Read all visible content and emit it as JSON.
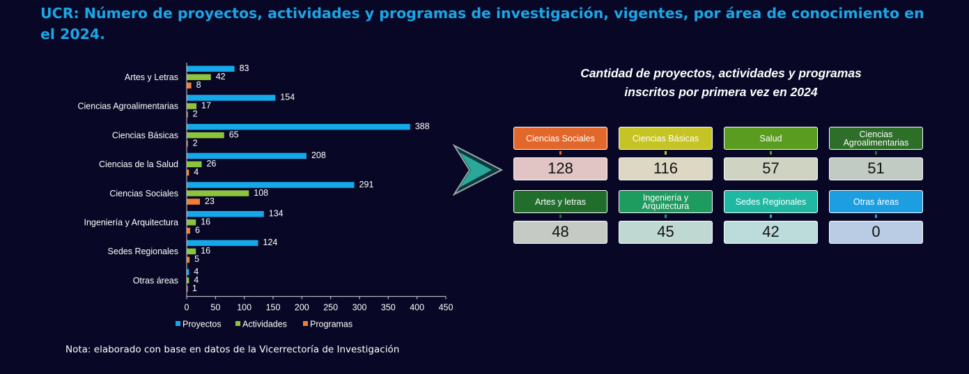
{
  "title": "UCR: Número de proyectos, actividades y programas de investigación, vigentes, por área de conocimiento en el 2024.",
  "note": "Nota: elaborado con base en datos de la Vicerrectoría de Investigación",
  "chart_data": {
    "type": "bar",
    "orientation": "horizontal",
    "categories": [
      "Artes y Letras",
      "Ciencias Agroalimentarias",
      "Ciencias Básicas",
      "Ciencias de la Salud",
      "Ciencias Sociales",
      "Ingeniería y Arquitectura",
      "Sedes Regionales",
      "Otras áreas"
    ],
    "series": [
      {
        "name": "Proyectos",
        "color": "#16a9e9",
        "values": [
          83,
          154,
          388,
          208,
          291,
          134,
          124,
          4
        ]
      },
      {
        "name": "Actividades",
        "color": "#8cc43e",
        "values": [
          42,
          17,
          65,
          26,
          108,
          16,
          16,
          4
        ]
      },
      {
        "name": "Programas",
        "color": "#f07f34",
        "values": [
          8,
          2,
          2,
          4,
          23,
          6,
          5,
          1
        ]
      }
    ],
    "xlim": [
      0,
      450
    ],
    "xticks": [
      0,
      50,
      100,
      150,
      200,
      250,
      300,
      350,
      400,
      450
    ],
    "legend": "bottom",
    "grid": false
  },
  "panel": {
    "title_line1": "Cantidad de proyectos, actividades y programas",
    "title_line2": "inscritos por primera vez en 2024",
    "cards": [
      {
        "label": "Ciencias Sociales",
        "value": "128",
        "color": "#e2672b",
        "value_bg": "#e1c5c4"
      },
      {
        "label": "Ciencias Básicas",
        "value": "116",
        "color": "#c6c424",
        "value_bg": "#ddd8c4"
      },
      {
        "label": "Salud",
        "value": "57",
        "color": "#5a9c20",
        "value_bg": "#cfd4c2"
      },
      {
        "label": "Ciencias Agroalimentarias",
        "value": "51",
        "color": "#2d6e28",
        "value_bg": "#c2cac4"
      },
      {
        "label": "Artes y letras",
        "value": "48",
        "color": "#216e2c",
        "value_bg": "#c5cac5"
      },
      {
        "label": "Ingeniería y Arquitectura",
        "value": "45",
        "color": "#1e9b5e",
        "value_bg": "#bfd8d2"
      },
      {
        "label": "Sedes Regionales",
        "value": "42",
        "color": "#1fb8a3",
        "value_bg": "#bcdcdc"
      },
      {
        "label": "Otras áreas",
        "value": "0",
        "color": "#1c9ee0",
        "value_bg": "#b9cce4"
      }
    ]
  }
}
